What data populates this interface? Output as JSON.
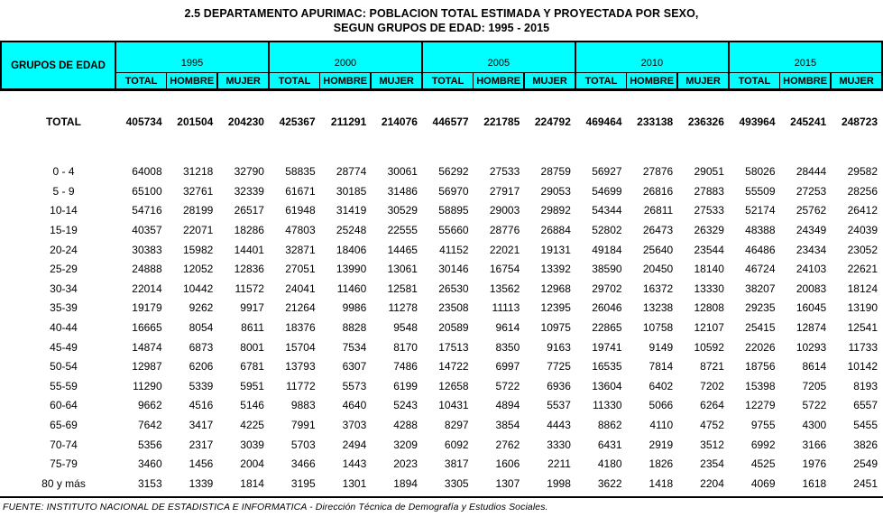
{
  "title": {
    "line1": "2.5  DEPARTAMENTO APURIMAC: POBLACION TOTAL ESTIMADA Y PROYECTADA POR SEXO,",
    "line2": "SEGUN GRUPOS DE EDAD: 1995 - 2015"
  },
  "colors": {
    "header_bg": "#00FFFF",
    "border": "#000000",
    "text": "#000000",
    "background": "#FFFFFF"
  },
  "table": {
    "corner_header": "GRUPOS DE EDAD",
    "years": [
      "1995",
      "2000",
      "2005",
      "2010",
      "2015"
    ],
    "sub_headers": [
      "TOTAL",
      "HOMBRE",
      "MUJER"
    ],
    "total_row": {
      "label": "TOTAL",
      "values": [
        405734,
        201504,
        204230,
        425367,
        211291,
        214076,
        446577,
        221785,
        224792,
        469464,
        233138,
        236326,
        493964,
        245241,
        248723
      ]
    },
    "rows": [
      {
        "label": "0 - 4",
        "values": [
          64008,
          31218,
          32790,
          58835,
          28774,
          30061,
          56292,
          27533,
          28759,
          56927,
          27876,
          29051,
          58026,
          28444,
          29582
        ]
      },
      {
        "label": "5 - 9",
        "values": [
          65100,
          32761,
          32339,
          61671,
          30185,
          31486,
          56970,
          27917,
          29053,
          54699,
          26816,
          27883,
          55509,
          27253,
          28256
        ]
      },
      {
        "label": "10-14",
        "values": [
          54716,
          28199,
          26517,
          61948,
          31419,
          30529,
          58895,
          29003,
          29892,
          54344,
          26811,
          27533,
          52174,
          25762,
          26412
        ]
      },
      {
        "label": "15-19",
        "values": [
          40357,
          22071,
          18286,
          47803,
          25248,
          22555,
          55660,
          28776,
          26884,
          52802,
          26473,
          26329,
          48388,
          24349,
          24039
        ]
      },
      {
        "label": "20-24",
        "values": [
          30383,
          15982,
          14401,
          32871,
          18406,
          14465,
          41152,
          22021,
          19131,
          49184,
          25640,
          23544,
          46486,
          23434,
          23052
        ]
      },
      {
        "label": "25-29",
        "values": [
          24888,
          12052,
          12836,
          27051,
          13990,
          13061,
          30146,
          16754,
          13392,
          38590,
          20450,
          18140,
          46724,
          24103,
          22621
        ]
      },
      {
        "label": "30-34",
        "values": [
          22014,
          10442,
          11572,
          24041,
          11460,
          12581,
          26530,
          13562,
          12968,
          29702,
          16372,
          13330,
          38207,
          20083,
          18124
        ]
      },
      {
        "label": "35-39",
        "values": [
          19179,
          9262,
          9917,
          21264,
          9986,
          11278,
          23508,
          11113,
          12395,
          26046,
          13238,
          12808,
          29235,
          16045,
          13190
        ]
      },
      {
        "label": "40-44",
        "values": [
          16665,
          8054,
          8611,
          18376,
          8828,
          9548,
          20589,
          9614,
          10975,
          22865,
          10758,
          12107,
          25415,
          12874,
          12541
        ]
      },
      {
        "label": "45-49",
        "values": [
          14874,
          6873,
          8001,
          15704,
          7534,
          8170,
          17513,
          8350,
          9163,
          19741,
          9149,
          10592,
          22026,
          10293,
          11733
        ]
      },
      {
        "label": "50-54",
        "values": [
          12987,
          6206,
          6781,
          13793,
          6307,
          7486,
          14722,
          6997,
          7725,
          16535,
          7814,
          8721,
          18756,
          8614,
          10142
        ]
      },
      {
        "label": "55-59",
        "values": [
          11290,
          5339,
          5951,
          11772,
          5573,
          6199,
          12658,
          5722,
          6936,
          13604,
          6402,
          7202,
          15398,
          7205,
          8193
        ]
      },
      {
        "label": "60-64",
        "values": [
          9662,
          4516,
          5146,
          9883,
          4640,
          5243,
          10431,
          4894,
          5537,
          11330,
          5066,
          6264,
          12279,
          5722,
          6557
        ]
      },
      {
        "label": "65-69",
        "values": [
          7642,
          3417,
          4225,
          7991,
          3703,
          4288,
          8297,
          3854,
          4443,
          8862,
          4110,
          4752,
          9755,
          4300,
          5455
        ]
      },
      {
        "label": "70-74",
        "values": [
          5356,
          2317,
          3039,
          5703,
          2494,
          3209,
          6092,
          2762,
          3330,
          6431,
          2919,
          3512,
          6992,
          3166,
          3826
        ]
      },
      {
        "label": "75-79",
        "values": [
          3460,
          1456,
          2004,
          3466,
          1443,
          2023,
          3817,
          1606,
          2211,
          4180,
          1826,
          2354,
          4525,
          1976,
          2549
        ]
      },
      {
        "label": "80 y más",
        "values": [
          3153,
          1339,
          1814,
          3195,
          1301,
          1894,
          3305,
          1307,
          1998,
          3622,
          1418,
          2204,
          4069,
          1618,
          2451
        ]
      }
    ]
  },
  "footer": {
    "source": "FUENTE: INSTITUTO NACIONAL DE ESTADISTICA E INFORMATICA - Dirección Técnica de Demografía y Estudios Sociales."
  }
}
